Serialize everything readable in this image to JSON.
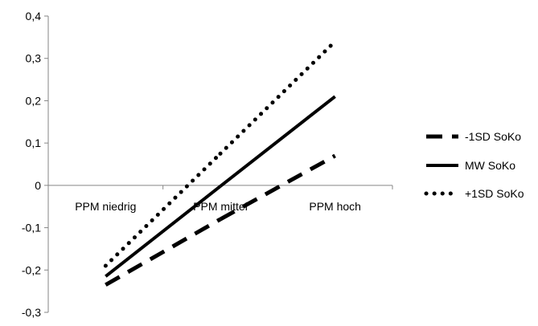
{
  "chart_data": {
    "type": "line",
    "categories": [
      "PPM niedrig",
      "PPM mittel",
      "PPM hoch"
    ],
    "series": [
      {
        "name": "-1SD SoKo",
        "values": [
          -0.235,
          -0.08,
          0.07
        ],
        "line_style": "dashed",
        "color": "#000000"
      },
      {
        "name": "MW SoKo",
        "values": [
          -0.215,
          -0.002,
          0.21
        ],
        "line_style": "solid",
        "color": "#000000"
      },
      {
        "name": "+1SD SoKo",
        "values": [
          -0.19,
          0.075,
          0.34
        ],
        "line_style": "dotted",
        "color": "#000000"
      }
    ],
    "ylim": [
      -0.3,
      0.4
    ],
    "yticks": [
      "0,4",
      "0,3",
      "0,2",
      "0,1",
      "0",
      "-0,1",
      "-0,2",
      "-0,3"
    ],
    "ytick_values": [
      0.4,
      0.3,
      0.2,
      0.1,
      0,
      -0.1,
      -0.2,
      -0.3
    ],
    "grid": false,
    "legend_position": "right",
    "title": "",
    "xlabel": "",
    "ylabel": ""
  }
}
